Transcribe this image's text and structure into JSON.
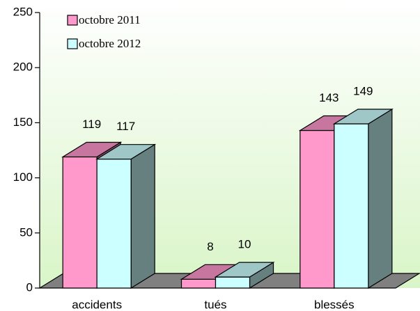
{
  "chart_data": {
    "type": "bar3d",
    "categories": [
      "accidents",
      "tués",
      "blessés"
    ],
    "series": [
      {
        "name": "octobre 2011",
        "color": "#ff99cc",
        "values": [
          119,
          8,
          143
        ]
      },
      {
        "name": "octobre 2012",
        "color": "#ccffff",
        "values": [
          117,
          10,
          149
        ]
      }
    ],
    "ylim": [
      0,
      250
    ],
    "yticks": [
      0,
      50,
      100,
      150,
      200,
      250
    ],
    "grid": false,
    "legend": "top-left",
    "data_labels": true
  }
}
